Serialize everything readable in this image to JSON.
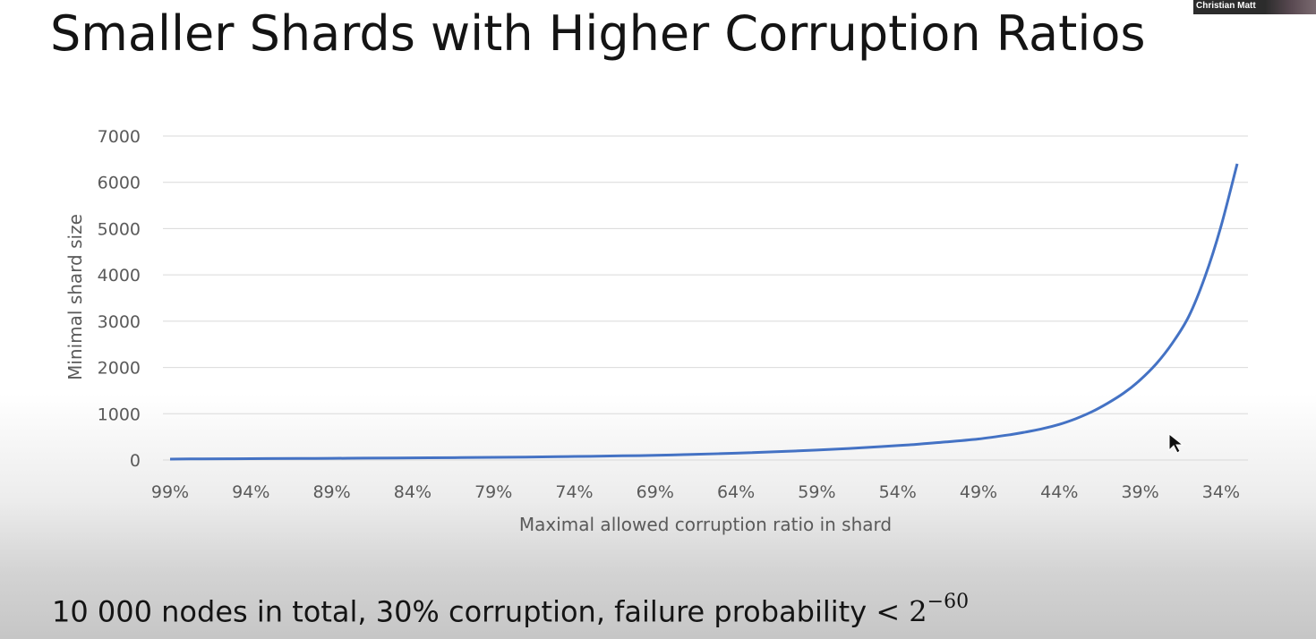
{
  "slide": {
    "title": "Smaller Shards with Higher Corruption Ratios",
    "footer_text": "10 000 nodes in total, 30% corruption, failure probability",
    "footer_math_lt": "<",
    "footer_math_base": "2",
    "footer_math_exponent": "−60",
    "participant_name": "Christian Matt"
  },
  "colors": {
    "line": "#4472c4",
    "grid": "#d9d9d9",
    "text": "#595959"
  },
  "chart_data": {
    "type": "line",
    "title": "",
    "xlabel": "Maximal allowed corruption ratio in shard",
    "ylabel": "Minimal shard size",
    "ylim": [
      0,
      7000
    ],
    "yticks": [
      "0",
      "1000",
      "2000",
      "3000",
      "4000",
      "5000",
      "6000",
      "7000"
    ],
    "xticks": [
      "99%",
      "94%",
      "89%",
      "84%",
      "79%",
      "74%",
      "69%",
      "64%",
      "59%",
      "54%",
      "49%",
      "44%",
      "39%",
      "34%"
    ],
    "x_unit": "% maximal corruption ratio",
    "grid": true,
    "legend": "none",
    "series": [
      {
        "x": [
          99,
          97,
          95,
          93,
          91,
          89,
          87,
          85,
          83,
          81,
          79,
          77,
          75,
          73,
          71,
          69,
          67,
          65,
          63,
          61,
          59,
          57,
          55,
          53,
          51,
          49,
          47,
          46,
          45,
          44,
          43,
          42,
          41,
          40,
          39,
          38,
          37,
          36,
          35,
          34,
          33
        ],
        "y": [
          20,
          25,
          28,
          30,
          33,
          36,
          40,
          44,
          48,
          53,
          58,
          64,
          72,
          80,
          90,
          102,
          118,
          137,
          160,
          185,
          215,
          250,
          290,
          335,
          390,
          455,
          550,
          610,
          680,
          770,
          890,
          1040,
          1230,
          1450,
          1730,
          2080,
          2530,
          3100,
          3950,
          5050,
          6400
        ]
      }
    ]
  }
}
